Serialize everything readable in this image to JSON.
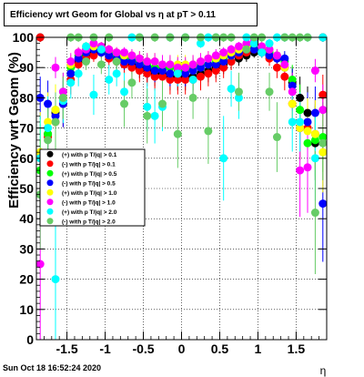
{
  "title": "Efficiency wrt Geom for Global vs   η at pT > 0.11",
  "footer": {
    "date": "Sun Oct 18 16:52:24 2020"
  },
  "chart_data": {
    "type": "scatter",
    "title": "Efficiency wrt Geom for Global vs   η at pT > 0.11",
    "xlabel": "η",
    "ylabel": "Efficiency wrt Geom (%)",
    "xlim": [
      -1.9,
      1.9
    ],
    "ylim": [
      0,
      100
    ],
    "xticks": [
      -1.5,
      -1,
      -0.5,
      0,
      0.5,
      1,
      1.5
    ],
    "xtick_labels": [
      "-1.5",
      "-1",
      "-0.5",
      "0",
      "0.5",
      "1",
      "1.5"
    ],
    "yticks": [
      0,
      10,
      20,
      30,
      40,
      50,
      60,
      70,
      80,
      90,
      100
    ],
    "ytick_labels": [
      "0",
      "10",
      "20",
      "30",
      "40",
      "50",
      "60",
      "70",
      "80",
      "90",
      "100"
    ],
    "grid": true,
    "legend_position": "left-middle",
    "series": [
      {
        "name": "(+) with p T/|q| > 0.1",
        "color": "#000000",
        "x": [
          -1.85,
          -1.75,
          -1.65,
          -1.55,
          -1.45,
          -1.35,
          -1.25,
          -1.15,
          -1.05,
          -0.95,
          -0.85,
          -0.75,
          -0.65,
          -0.55,
          -0.45,
          -0.35,
          -0.25,
          -0.15,
          -0.05,
          0.05,
          0.15,
          0.25,
          0.35,
          0.45,
          0.55,
          0.65,
          0.75,
          0.85,
          0.95,
          1.05,
          1.15,
          1.25,
          1.35,
          1.45,
          1.55,
          1.65,
          1.75,
          1.85
        ],
        "y": [
          100,
          68,
          75,
          80,
          88,
          92,
          94,
          95,
          95,
          94,
          93,
          92,
          91,
          90,
          89,
          88,
          88,
          87,
          87,
          87,
          87,
          88,
          89,
          90,
          91,
          92,
          93,
          94,
          95,
          95,
          94,
          93,
          90,
          85,
          80,
          75,
          65,
          100
        ]
      },
      {
        "name": "(-) with p T/|q| > 0.1",
        "color": "#ff0000",
        "x": [
          -1.85,
          -1.75,
          -1.65,
          -1.55,
          -1.45,
          -1.35,
          -1.25,
          -1.15,
          -1.05,
          -0.95,
          -0.85,
          -0.75,
          -0.65,
          -0.55,
          -0.45,
          -0.35,
          -0.25,
          -0.15,
          -0.05,
          0.05,
          0.15,
          0.25,
          0.35,
          0.45,
          0.55,
          0.65,
          0.75,
          0.85,
          0.95,
          1.05,
          1.15,
          1.25,
          1.35,
          1.45,
          1.55,
          1.65,
          1.75,
          1.85
        ],
        "y": [
          100,
          67,
          72,
          78,
          86,
          91,
          93,
          94,
          95,
          93,
          92,
          91,
          90,
          89,
          88,
          87,
          87,
          86,
          86,
          86,
          86,
          87,
          88,
          89,
          90,
          92,
          94,
          95,
          96,
          95,
          93,
          90,
          87,
          78,
          70,
          70,
          68,
          81
        ]
      },
      {
        "name": "(+) with p T/|q| > 0.5",
        "color": "#00ff00",
        "x": [
          -1.85,
          -1.75,
          -1.65,
          -1.55,
          -1.45,
          -1.35,
          -1.25,
          -1.15,
          -1.05,
          -0.95,
          -0.85,
          -0.75,
          -0.65,
          -0.55,
          -0.45,
          -0.35,
          -0.25,
          -0.15,
          -0.05,
          0.05,
          0.15,
          0.25,
          0.35,
          0.45,
          0.55,
          0.65,
          0.75,
          0.85,
          0.95,
          1.05,
          1.15,
          1.25,
          1.35,
          1.45,
          1.55,
          1.65,
          1.75,
          1.85
        ],
        "y": [
          56,
          68,
          76,
          82,
          90,
          94,
          96,
          97,
          96,
          95,
          94,
          93,
          93,
          92,
          91,
          90,
          90,
          90,
          89,
          89,
          90,
          91,
          91,
          92,
          93,
          94,
          96,
          97,
          97,
          96,
          95,
          94,
          92,
          86,
          76,
          65,
          66,
          67
        ]
      },
      {
        "name": "(-) with p T/|q| > 0.5",
        "color": "#0000ff",
        "x": [
          -1.85,
          -1.75,
          -1.65,
          -1.55,
          -1.45,
          -1.35,
          -1.25,
          -1.15,
          -1.05,
          -0.95,
          -0.85,
          -0.75,
          -0.65,
          -0.55,
          -0.45,
          -0.35,
          -0.25,
          -0.15,
          -0.05,
          0.05,
          0.15,
          0.25,
          0.35,
          0.45,
          0.55,
          0.65,
          0.75,
          0.85,
          0.95,
          1.05,
          1.15,
          1.25,
          1.35,
          1.45,
          1.55,
          1.65,
          1.75,
          1.85
        ],
        "y": [
          80,
          78,
          74,
          78,
          88,
          93,
          95,
          96,
          95,
          94,
          93,
          92,
          92,
          91,
          90,
          89,
          89,
          88,
          88,
          88,
          89,
          90,
          91,
          91,
          92,
          94,
          95,
          96,
          96,
          95,
          94,
          93,
          93,
          84,
          70,
          72,
          75,
          45
        ]
      },
      {
        "name": "(+) with p T/|q| > 1.0",
        "color": "#ffff00",
        "x": [
          -1.85,
          -1.75,
          -1.65,
          -1.55,
          -1.45,
          -1.35,
          -1.25,
          -1.15,
          -1.05,
          -0.95,
          -0.85,
          -0.75,
          -0.65,
          -0.55,
          -0.45,
          -0.35,
          -0.25,
          -0.15,
          -0.05,
          0.05,
          0.15,
          0.25,
          0.35,
          0.45,
          0.55,
          0.65,
          0.75,
          0.85,
          0.95,
          1.05,
          1.15,
          1.25,
          1.35,
          1.45,
          1.55,
          1.65,
          1.75,
          1.85
        ],
        "y": [
          62,
          72,
          76,
          80,
          91,
          95,
          97,
          97,
          97,
          96,
          95,
          94,
          94,
          93,
          92,
          92,
          91,
          91,
          91,
          91,
          91,
          92,
          93,
          93,
          94,
          95,
          96,
          97,
          98,
          97,
          96,
          94,
          90,
          78,
          70,
          69,
          68,
          62
        ]
      },
      {
        "name": "(-) with p T/|q| > 1.0",
        "color": "#ff00ff",
        "x": [
          -1.85,
          -1.75,
          -1.65,
          -1.55,
          -1.45,
          -1.35,
          -1.25,
          -1.15,
          -1.05,
          -0.95,
          -0.85,
          -0.75,
          -0.65,
          -0.55,
          -0.45,
          -0.35,
          -0.25,
          -0.15,
          -0.05,
          0.05,
          0.15,
          0.25,
          0.35,
          0.45,
          0.55,
          0.65,
          0.75,
          0.85,
          0.95,
          1.05,
          1.15,
          1.25,
          1.35,
          1.45,
          1.55,
          1.65,
          1.75,
          1.85
        ],
        "y": [
          25,
          60,
          90,
          82,
          92,
          95,
          96,
          98,
          97,
          96,
          95,
          95,
          94,
          93,
          92,
          92,
          91,
          91,
          90,
          90,
          91,
          92,
          93,
          94,
          95,
          96,
          97,
          98,
          99,
          97,
          96,
          94,
          91,
          82,
          56,
          57,
          89,
          76
        ]
      },
      {
        "name": "(+) with p T/|q| > 2.0",
        "color": "#00ffff",
        "x": [
          -1.85,
          -1.75,
          -1.65,
          -1.55,
          -1.45,
          -1.35,
          -1.25,
          -1.15,
          -1.05,
          -0.95,
          -0.85,
          -0.75,
          -0.65,
          -0.55,
          -0.45,
          -0.35,
          -0.25,
          -0.15,
          -0.05,
          0.05,
          0.15,
          0.25,
          0.35,
          0.45,
          0.55,
          0.65,
          0.75,
          0.85,
          0.95,
          1.05,
          1.15,
          1.25,
          1.35,
          1.45,
          1.55,
          1.65,
          1.75,
          1.85
        ],
        "y": [
          60,
          70,
          20,
          79,
          85,
          88,
          97,
          81,
          96,
          86,
          88,
          82,
          100,
          100,
          77,
          74,
          77,
          100,
          88,
          100,
          86,
          98,
          100,
          100,
          60,
          83,
          80,
          100,
          98,
          95,
          98,
          100,
          100,
          72,
          72,
          100,
          60,
          100
        ]
      },
      {
        "name": "(-) with p T/|q| > 2.0",
        "color": "#66cc66",
        "x": [
          -1.85,
          -1.75,
          -1.65,
          -1.55,
          -1.45,
          -1.35,
          -1.25,
          -1.15,
          -1.05,
          -0.95,
          -0.85,
          -0.75,
          -0.65,
          -0.55,
          -0.45,
          -0.35,
          -0.25,
          -0.15,
          -0.05,
          0.05,
          0.15,
          0.25,
          0.35,
          0.45,
          0.55,
          0.65,
          0.75,
          0.85,
          0.95,
          1.05,
          1.15,
          1.25,
          1.35,
          1.45,
          1.55,
          1.65,
          1.75,
          1.85
        ],
        "y": [
          48,
          66,
          72,
          80,
          100,
          100,
          92,
          100,
          91,
          100,
          92,
          78,
          85,
          100,
          74,
          100,
          78,
          100,
          68,
          100,
          80,
          100,
          69,
          100,
          100,
          100,
          82,
          96,
          100,
          100,
          82,
          67,
          100,
          100,
          100,
          100,
          42,
          65
        ]
      }
    ]
  }
}
